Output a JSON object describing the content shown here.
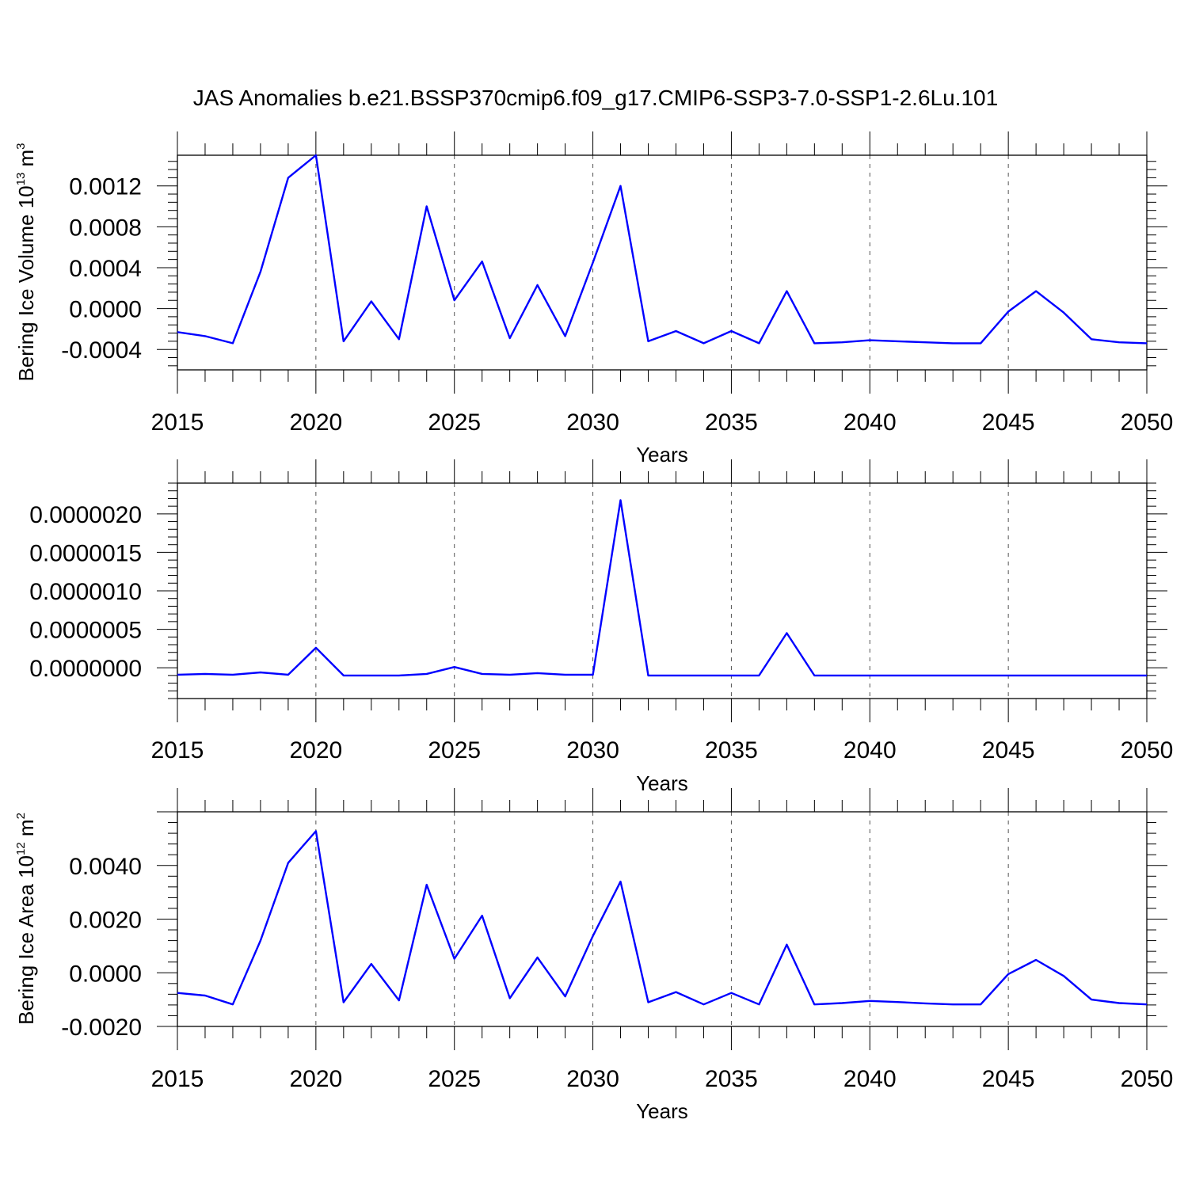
{
  "title": "JAS Anomalies b.e21.BSSP370cmip6.f09_g17.CMIP6-SSP3-7.0-SSP1-2.6Lu.101",
  "line_color": "#0000ff",
  "chart_data": [
    {
      "type": "line",
      "xlabel": "Years",
      "ylabel": {
        "base": "Bering Ice Volume 10",
        "exp1": "13",
        "mid": " m",
        "exp2": "3"
      },
      "xlim": [
        2015,
        2050
      ],
      "ylim": [
        -0.0006,
        0.0015
      ],
      "xticks": [
        "2015",
        "2020",
        "2025",
        "2030",
        "2035",
        "2040",
        "2045",
        "2050"
      ],
      "yticks": [
        {
          "v": -0.0004,
          "label": "-0.0004"
        },
        {
          "v": 0.0,
          "label": "0.0000"
        },
        {
          "v": 0.0004,
          "label": "0.0004"
        },
        {
          "v": 0.0008,
          "label": "0.0008"
        },
        {
          "v": 0.0012,
          "label": "0.0012"
        }
      ],
      "x": [
        2015,
        2016,
        2017,
        2018,
        2019,
        2020,
        2021,
        2022,
        2023,
        2024,
        2025,
        2026,
        2027,
        2028,
        2029,
        2030,
        2031,
        2032,
        2033,
        2034,
        2035,
        2036,
        2037,
        2038,
        2039,
        2040,
        2041,
        2042,
        2043,
        2044,
        2045,
        2046,
        2047,
        2048,
        2049,
        2050
      ],
      "series": [
        {
          "values": [
            -0.00023,
            -0.00027,
            -0.00034,
            0.00036,
            0.00128,
            0.0015,
            -0.00032,
            7e-05,
            -0.0003,
            0.001,
            8e-05,
            0.00046,
            -0.00029,
            0.00023,
            -0.00027,
            0.00045,
            0.0012,
            -0.00032,
            -0.00022,
            -0.00034,
            -0.00022,
            -0.00034,
            0.00017,
            -0.00034,
            -0.00033,
            -0.00031,
            -0.00032,
            -0.00033,
            -0.00034,
            -0.00034,
            -3e-05,
            0.00017,
            -4e-05,
            -0.0003,
            -0.00033,
            -0.00034
          ]
        }
      ]
    },
    {
      "type": "line",
      "xlabel": "Years",
      "ylabel": {
        "base": "",
        "exp1": "",
        "mid": "",
        "exp2": ""
      },
      "xlim": [
        2015,
        2050
      ],
      "ylim": [
        -4e-07,
        2.4e-06
      ],
      "xticks": [
        "2015",
        "2020",
        "2025",
        "2030",
        "2035",
        "2040",
        "2045",
        "2050"
      ],
      "yticks": [
        {
          "v": 0.0,
          "label": "0.0000000"
        },
        {
          "v": 5e-07,
          "label": "0.0000005"
        },
        {
          "v": 1e-06,
          "label": "0.0000010"
        },
        {
          "v": 1.5e-06,
          "label": "0.0000015"
        },
        {
          "v": 2e-06,
          "label": "0.0000020"
        }
      ],
      "x": [
        2015,
        2016,
        2017,
        2018,
        2019,
        2020,
        2021,
        2022,
        2023,
        2024,
        2025,
        2026,
        2027,
        2028,
        2029,
        2030,
        2031,
        2032,
        2033,
        2034,
        2035,
        2036,
        2037,
        2038,
        2039,
        2040,
        2041,
        2042,
        2043,
        2044,
        2045,
        2046,
        2047,
        2048,
        2049,
        2050
      ],
      "series": [
        {
          "values": [
            -9e-08,
            -8e-08,
            -9e-08,
            -6e-08,
            -9e-08,
            2.6e-07,
            -1e-07,
            -1e-07,
            -1e-07,
            -8e-08,
            1e-08,
            -8e-08,
            -9e-08,
            -7e-08,
            -9e-08,
            -9e-08,
            2.18e-06,
            -1e-07,
            -1e-07,
            -1e-07,
            -1e-07,
            -1e-07,
            4.5e-07,
            -1e-07,
            -1e-07,
            -1e-07,
            -1e-07,
            -1e-07,
            -1e-07,
            -1e-07,
            -1e-07,
            -1e-07,
            -1e-07,
            -1e-07,
            -1e-07,
            -1e-07
          ]
        }
      ]
    },
    {
      "type": "line",
      "xlabel": "Years",
      "ylabel": {
        "base": "Bering Ice Area 10",
        "exp1": "12",
        "mid": " m",
        "exp2": "2"
      },
      "xlim": [
        2015,
        2050
      ],
      "ylim": [
        -0.002,
        0.006
      ],
      "xticks": [
        "2015",
        "2020",
        "2025",
        "2030",
        "2035",
        "2040",
        "2045",
        "2050"
      ],
      "yticks": [
        {
          "v": -0.002,
          "label": "-0.0020"
        },
        {
          "v": 0.0,
          "label": "0.0000"
        },
        {
          "v": 0.002,
          "label": "0.0020"
        },
        {
          "v": 0.004,
          "label": "0.0040"
        }
      ],
      "x": [
        2015,
        2016,
        2017,
        2018,
        2019,
        2020,
        2021,
        2022,
        2023,
        2024,
        2025,
        2026,
        2027,
        2028,
        2029,
        2030,
        2031,
        2032,
        2033,
        2034,
        2035,
        2036,
        2037,
        2038,
        2039,
        2040,
        2041,
        2042,
        2043,
        2044,
        2045,
        2046,
        2047,
        2048,
        2049,
        2050
      ],
      "series": [
        {
          "values": [
            -0.00075,
            -0.00085,
            -0.00118,
            0.0012,
            0.0041,
            0.00528,
            -0.0011,
            0.00033,
            -0.00103,
            0.00328,
            0.00052,
            0.00213,
            -0.00095,
            0.00057,
            -0.00088,
            0.00137,
            0.0034,
            -0.0011,
            -0.00072,
            -0.00118,
            -0.00075,
            -0.00118,
            0.00105,
            -0.00118,
            -0.00113,
            -0.00105,
            -0.00109,
            -0.00114,
            -0.00118,
            -0.00118,
            -5e-05,
            0.00048,
            -0.00012,
            -0.001,
            -0.00113,
            -0.00118
          ]
        }
      ]
    }
  ]
}
